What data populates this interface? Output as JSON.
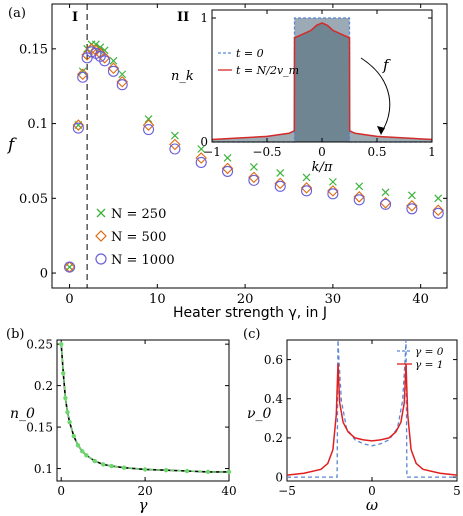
{
  "chart_data": [
    {
      "type": "scatter",
      "panel_label": "(a)",
      "xlabel": "Heater strength γ, in J",
      "ylabel": "f",
      "xlim": [
        -2,
        43
      ],
      "ylim": [
        -0.01,
        0.18
      ],
      "xticks": [
        "0",
        "10",
        "20",
        "30",
        "40"
      ],
      "yticks": [
        "0",
        "0.05",
        "0.1",
        "0.15"
      ],
      "region_labels": [
        "I",
        "II"
      ],
      "divider_x": 2,
      "legend": "bottom-left",
      "series": [
        {
          "name": "N = 250",
          "marker": "x",
          "color": "#3cb43c",
          "x": [
            0,
            1,
            1.5,
            2,
            2.5,
            3,
            3.5,
            4,
            5,
            6,
            9,
            12,
            15,
            18,
            21,
            24,
            27,
            30,
            33,
            36,
            39,
            42
          ],
          "y": [
            0.004,
            0.099,
            0.135,
            0.15,
            0.153,
            0.153,
            0.151,
            0.149,
            0.142,
            0.133,
            0.103,
            0.092,
            0.083,
            0.077,
            0.071,
            0.067,
            0.064,
            0.061,
            0.058,
            0.054,
            0.052,
            0.05
          ]
        },
        {
          "name": "N = 500",
          "marker": "diamond",
          "color": "#e06a10",
          "x": [
            0,
            1,
            1.5,
            2,
            2.5,
            3,
            3.5,
            4,
            5,
            6,
            9,
            12,
            15,
            18,
            21,
            24,
            27,
            30,
            33,
            36,
            39,
            42
          ],
          "y": [
            0.004,
            0.099,
            0.133,
            0.146,
            0.15,
            0.149,
            0.147,
            0.144,
            0.137,
            0.128,
            0.099,
            0.086,
            0.077,
            0.07,
            0.064,
            0.06,
            0.057,
            0.055,
            0.051,
            0.047,
            0.045,
            0.042
          ]
        },
        {
          "name": "N = 1000",
          "marker": "circle",
          "color": "#6a5fd9",
          "x": [
            0,
            1,
            1.5,
            2,
            2.5,
            3,
            3.5,
            4,
            5,
            6,
            9,
            12,
            15,
            18,
            21,
            24,
            27,
            30,
            33,
            36,
            39,
            42
          ],
          "y": [
            0.004,
            0.097,
            0.131,
            0.144,
            0.148,
            0.147,
            0.145,
            0.142,
            0.135,
            0.126,
            0.096,
            0.083,
            0.074,
            0.068,
            0.062,
            0.058,
            0.055,
            0.053,
            0.049,
            0.046,
            0.043,
            0.04
          ]
        }
      ]
    },
    {
      "type": "area",
      "panel_label": "inset",
      "xlabel": "k/π",
      "ylabel": "n_k",
      "xlim": [
        -1,
        1
      ],
      "ylim": [
        0,
        1.0
      ],
      "xticks": [
        "−1",
        "−0.5",
        "0",
        "0.5",
        "1"
      ],
      "yticks": [
        "0",
        "1"
      ],
      "annotation": "f",
      "series": [
        {
          "name": "t = 0",
          "color": "#5b86d6",
          "style": "dashed",
          "x": [
            -1,
            -0.25,
            -0.25,
            0.25,
            0.25,
            1
          ],
          "y": [
            0,
            0,
            1,
            1,
            0,
            0
          ]
        },
        {
          "name": "t = N/2v_m",
          "color": "#d42a2a",
          "style": "solid",
          "x": [
            -1,
            -0.8,
            -0.5,
            -0.3,
            -0.252,
            -0.25,
            -0.2,
            -0.1,
            -0.05,
            0,
            0.05,
            0.1,
            0.2,
            0.25,
            0.252,
            0.3,
            0.5,
            0.8,
            1
          ],
          "y": [
            0.02,
            0.03,
            0.045,
            0.07,
            0.09,
            0.84,
            0.86,
            0.9,
            0.94,
            0.96,
            0.94,
            0.9,
            0.86,
            0.84,
            0.09,
            0.07,
            0.045,
            0.03,
            0.02
          ]
        }
      ]
    },
    {
      "type": "line",
      "panel_label": "(b)",
      "xlabel": "γ",
      "ylabel": "n_0",
      "xlim": [
        -1,
        40
      ],
      "ylim": [
        0.085,
        0.255
      ],
      "xticks": [
        "0",
        "20",
        "40"
      ],
      "yticks": [
        "0.1",
        "0.15",
        "0.2",
        "0.25"
      ],
      "series": [
        {
          "name": "",
          "color": "#000000",
          "style": "solid",
          "x": [
            0,
            0.5,
            1,
            1.5,
            2,
            3,
            4,
            5,
            6,
            8,
            10,
            12,
            15,
            20,
            25,
            30,
            35,
            40
          ],
          "y": [
            0.25,
            0.215,
            0.185,
            0.168,
            0.156,
            0.139,
            0.128,
            0.121,
            0.116,
            0.109,
            0.105,
            0.103,
            0.101,
            0.099,
            0.098,
            0.097,
            0.096,
            0.096
          ]
        },
        {
          "name": "",
          "color": "#6dd66d",
          "style": "dashed-markers",
          "x": [
            0,
            0.5,
            1,
            1.5,
            2,
            3,
            4,
            5,
            6,
            8,
            10,
            12,
            15,
            20,
            25,
            30,
            35,
            40
          ],
          "y": [
            0.25,
            0.215,
            0.185,
            0.168,
            0.156,
            0.139,
            0.128,
            0.121,
            0.116,
            0.109,
            0.105,
            0.103,
            0.101,
            0.099,
            0.098,
            0.097,
            0.096,
            0.096
          ]
        }
      ]
    },
    {
      "type": "line",
      "panel_label": "(c)",
      "xlabel": "ω",
      "ylabel": "ν_0",
      "xlim": [
        -5,
        5
      ],
      "ylim": [
        -0.02,
        0.7
      ],
      "xticks": [
        "−5",
        "0",
        "5"
      ],
      "yticks": [
        "0",
        "0.2",
        "0.4",
        "0.6"
      ],
      "legend": "top-right",
      "series": [
        {
          "name": "γ = 0",
          "color": "#5b86d6",
          "style": "dashed",
          "x": [
            -5,
            -2.05,
            -2.0,
            -1.95,
            -1.8,
            -1.5,
            -1.0,
            -0.5,
            0,
            0.5,
            1.0,
            1.5,
            1.8,
            1.95,
            2.0,
            2.05,
            5
          ],
          "y": [
            0,
            0,
            0.7,
            0.6,
            0.39,
            0.25,
            0.19,
            0.17,
            0.16,
            0.17,
            0.19,
            0.25,
            0.39,
            0.6,
            0.7,
            0,
            0
          ]
        },
        {
          "name": "γ = 1",
          "color": "#e02020",
          "style": "solid",
          "x": [
            -5,
            -4,
            -3,
            -2.6,
            -2.3,
            -2.1,
            -2.0,
            -1.9,
            -1.7,
            -1.4,
            -1.0,
            -0.5,
            0,
            0.5,
            1.0,
            1.4,
            1.7,
            1.9,
            2.0,
            2.1,
            2.3,
            2.6,
            3,
            4,
            5
          ],
          "y": [
            0.01,
            0.02,
            0.04,
            0.07,
            0.14,
            0.32,
            0.58,
            0.38,
            0.28,
            0.23,
            0.2,
            0.19,
            0.185,
            0.19,
            0.2,
            0.23,
            0.28,
            0.38,
            0.58,
            0.32,
            0.14,
            0.07,
            0.04,
            0.02,
            0.01
          ]
        }
      ]
    }
  ]
}
